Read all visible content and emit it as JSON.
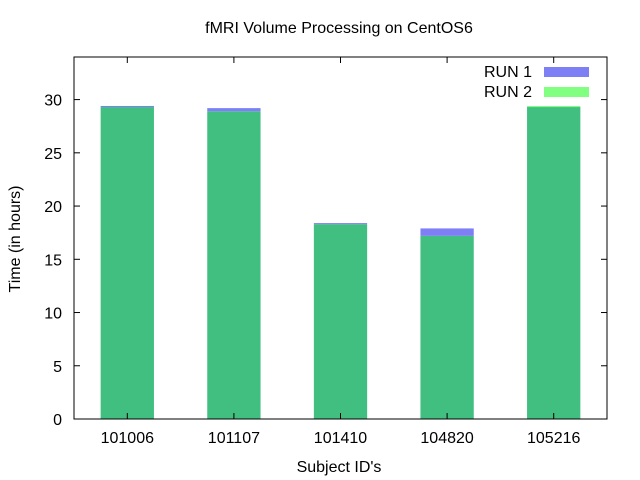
{
  "chart_data": {
    "type": "bar",
    "title": "fMRI Volume Processing on CentOS6",
    "xlabel": "Subject ID's",
    "ylabel": "Time (in hours)",
    "ylim": [
      0,
      34
    ],
    "yticks": [
      0,
      5,
      10,
      15,
      20,
      25,
      30
    ],
    "categories": [
      "101006",
      "101107",
      "101410",
      "104820",
      "105216"
    ],
    "series": [
      {
        "name": "RUN 1",
        "color": "#7f7ff5",
        "values": [
          29.4,
          29.2,
          18.4,
          17.9,
          29.3
        ]
      },
      {
        "name": "RUN 2",
        "color": "#80ff80",
        "values": [
          29.3,
          28.9,
          18.3,
          17.2,
          29.4
        ]
      }
    ],
    "overlap_color": "#40bf80",
    "legend_position": "top-right",
    "grid": false,
    "barmode": "overlay"
  }
}
